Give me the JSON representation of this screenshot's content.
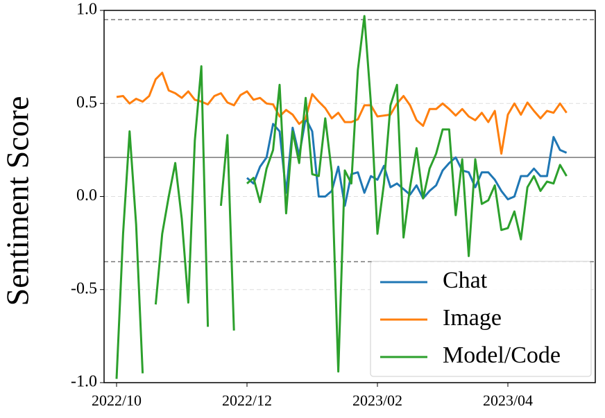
{
  "chart_data": {
    "type": "line",
    "y_label": "Sentiment Score",
    "categories": [
      "2022/10",
      null,
      null,
      null,
      null,
      null,
      null,
      null,
      null,
      null,
      null,
      null,
      null,
      null,
      null,
      null,
      null,
      null,
      null,
      null,
      "2022/12",
      null,
      null,
      null,
      null,
      null,
      null,
      null,
      null,
      null,
      null,
      null,
      null,
      null,
      null,
      null,
      null,
      null,
      null,
      null,
      "2023/02",
      null,
      null,
      null,
      null,
      null,
      null,
      null,
      null,
      null,
      null,
      null,
      null,
      null,
      null,
      null,
      null,
      null,
      null,
      null,
      "2023/04",
      null,
      null,
      null,
      null,
      null,
      null,
      null,
      null,
      null
    ],
    "series": [
      {
        "name": "Chat",
        "color": "#1f77b4",
        "values": [
          null,
          null,
          null,
          null,
          null,
          null,
          null,
          null,
          null,
          null,
          null,
          null,
          null,
          null,
          null,
          null,
          null,
          null,
          null,
          null,
          0.1,
          0.07,
          0.16,
          0.21,
          0.39,
          0.35,
          0.02,
          0.37,
          0.22,
          0.42,
          0.35,
          0.0,
          0.0,
          0.03,
          0.16,
          -0.05,
          0.12,
          0.13,
          0.02,
          0.11,
          0.09,
          0.165,
          0.05,
          0.07,
          0.04,
          0.01,
          0.06,
          -0.01,
          0.03,
          0.06,
          0.14,
          0.18,
          0.21,
          0.14,
          0.13,
          0.05,
          0.13,
          0.13,
          0.09,
          0.03,
          -0.015,
          0.0,
          0.11,
          0.11,
          0.15,
          0.11,
          0.11,
          0.32,
          0.25,
          0.235
        ]
      },
      {
        "name": "Image",
        "color": "#ff7f0e",
        "values": [
          0.535,
          0.54,
          0.5,
          0.525,
          0.51,
          0.54,
          0.63,
          0.665,
          0.57,
          0.555,
          0.53,
          0.565,
          0.52,
          0.51,
          0.495,
          0.54,
          0.555,
          0.505,
          0.49,
          0.545,
          0.565,
          0.52,
          0.53,
          0.5,
          0.495,
          0.43,
          0.465,
          0.44,
          0.39,
          0.42,
          0.55,
          0.51,
          0.475,
          0.42,
          0.45,
          0.4,
          0.4,
          0.415,
          0.49,
          0.49,
          0.43,
          0.435,
          0.44,
          0.5,
          0.54,
          0.49,
          0.41,
          0.38,
          0.47,
          0.47,
          0.5,
          0.47,
          0.435,
          0.47,
          0.43,
          0.41,
          0.45,
          0.4,
          0.46,
          0.23,
          0.44,
          0.5,
          0.44,
          0.505,
          0.46,
          0.42,
          0.46,
          0.45,
          0.5,
          0.45
        ]
      },
      {
        "name": "Model/Code",
        "color": "#2ca02c",
        "values": [
          -0.98,
          -0.2,
          0.35,
          -0.15,
          -0.95,
          null,
          -0.58,
          -0.2,
          0.0,
          0.18,
          -0.12,
          -0.57,
          0.3,
          0.7,
          -0.7,
          null,
          -0.05,
          0.33,
          -0.72,
          null,
          0.07,
          0.1,
          -0.03,
          0.15,
          0.25,
          0.6,
          -0.09,
          0.35,
          0.18,
          0.53,
          0.12,
          0.11,
          0.42,
          0.13,
          -0.94,
          0.14,
          0.07,
          0.68,
          0.97,
          0.5,
          -0.2,
          0.07,
          0.49,
          0.6,
          -0.22,
          0.05,
          0.26,
          -0.01,
          0.15,
          0.23,
          0.36,
          0.36,
          -0.1,
          0.2,
          -0.32,
          0.2,
          -0.04,
          -0.02,
          0.06,
          -0.18,
          -0.17,
          -0.08,
          -0.23,
          0.05,
          0.11,
          0.03,
          0.08,
          0.07,
          0.17,
          0.11
        ]
      }
    ],
    "ylim": [
      -1.0,
      1.0
    ],
    "yticks": [
      {
        "value": -1.0,
        "label": "-1.0"
      },
      {
        "value": -0.5,
        "label": "-0.5"
      },
      {
        "value": 0,
        "label": "0.0"
      },
      {
        "value": 0.5,
        "label": "0.5"
      },
      {
        "value": 1.0,
        "label": "1.0"
      }
    ],
    "grid": true,
    "reference_lines": [
      {
        "value": 0.95,
        "style": "dashed"
      },
      {
        "value": 0.21,
        "style": "solid"
      },
      {
        "value": -0.35,
        "style": "dashed"
      }
    ],
    "legend": "lower right"
  }
}
